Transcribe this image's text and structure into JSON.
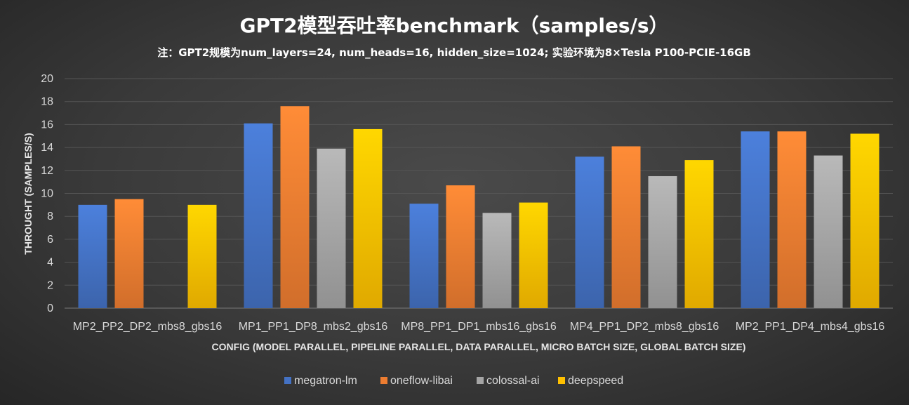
{
  "chart_data": {
    "type": "bar",
    "title": "GPT2模型吞吐率benchmark（samples/s）",
    "subtitle": "注：GPT2规模为num_layers=24, num_heads=16, hidden_size=1024; 实验环境为8×Tesla P100-PCIE-16GB",
    "xlabel": "CONFIG (MODEL PARALLEL, PIPELINE PARALLEL,  DATA PARALLEL, MICRO BATCH SIZE, GLOBAL BATCH SIZE)",
    "ylabel": "THROUGHT (SAMPLES/S)",
    "ylim": [
      0,
      20
    ],
    "yticks": [
      0,
      2,
      4,
      6,
      8,
      10,
      12,
      14,
      16,
      18,
      20
    ],
    "grid": true,
    "legend_position": "bottom",
    "categories": [
      "MP2_PP2_DP2_mbs8_gbs16",
      "MP1_PP1_DP8_mbs2_gbs16",
      "MP8_PP1_DP1_mbs16_gbs16",
      "MP4_PP1_DP2_mbs8_gbs16",
      "MP2_PP1_DP4_mbs4_gbs16"
    ],
    "series": [
      {
        "name": "megatron-lm",
        "color": "#4472c4",
        "values": [
          9.0,
          16.1,
          9.1,
          13.2,
          15.4
        ]
      },
      {
        "name": "oneflow-libai",
        "color": "#ed7d31",
        "values": [
          9.5,
          17.6,
          10.7,
          14.1,
          15.4
        ]
      },
      {
        "name": "colossal-ai",
        "color": "#a5a5a5",
        "values": [
          null,
          13.9,
          8.3,
          11.5,
          13.3
        ]
      },
      {
        "name": "deepspeed",
        "color": "#ffc000",
        "values": [
          9.0,
          15.6,
          9.2,
          12.9,
          15.2
        ]
      }
    ]
  }
}
